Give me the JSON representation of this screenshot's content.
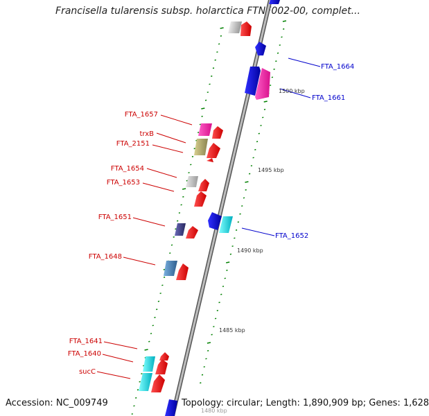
{
  "title": "Francisella tularensis subsp. holarctica FTNF002-00, complet...",
  "footer": {
    "accession": "Accession: NC_009749",
    "topology": "Topology: circular; Length: 1,890,909 bp; Genes: 1,628"
  },
  "scale_labels": [
    "1500 kbp",
    "1495 kbp",
    "1490 kbp",
    "1485 kbp",
    "1480 kbp"
  ],
  "gene_labels": {
    "left": [
      "FTA_1657",
      "trxB",
      "FTA_2151",
      "FTA_1654",
      "FTA_1653",
      "FTA_1651",
      "FTA_1648",
      "FTA_1641",
      "FTA_1640",
      "sucC"
    ],
    "right": [
      "FTA_1664",
      "FTA_1661",
      "FTA_1652"
    ]
  },
  "colors": {
    "label_left": "#cc0000",
    "label_right": "#0000cc",
    "backbone": "#8a8a8a",
    "cds_red": "#ff0000",
    "blue": "#0000ff",
    "pink": "#ff1aa8",
    "cyan": "#00e0e0",
    "olive": "#b5ad6a",
    "silver": "#c8c8c8",
    "steel": "#4682b4",
    "purple": "#3c3c8c",
    "tick": "#008000"
  }
}
